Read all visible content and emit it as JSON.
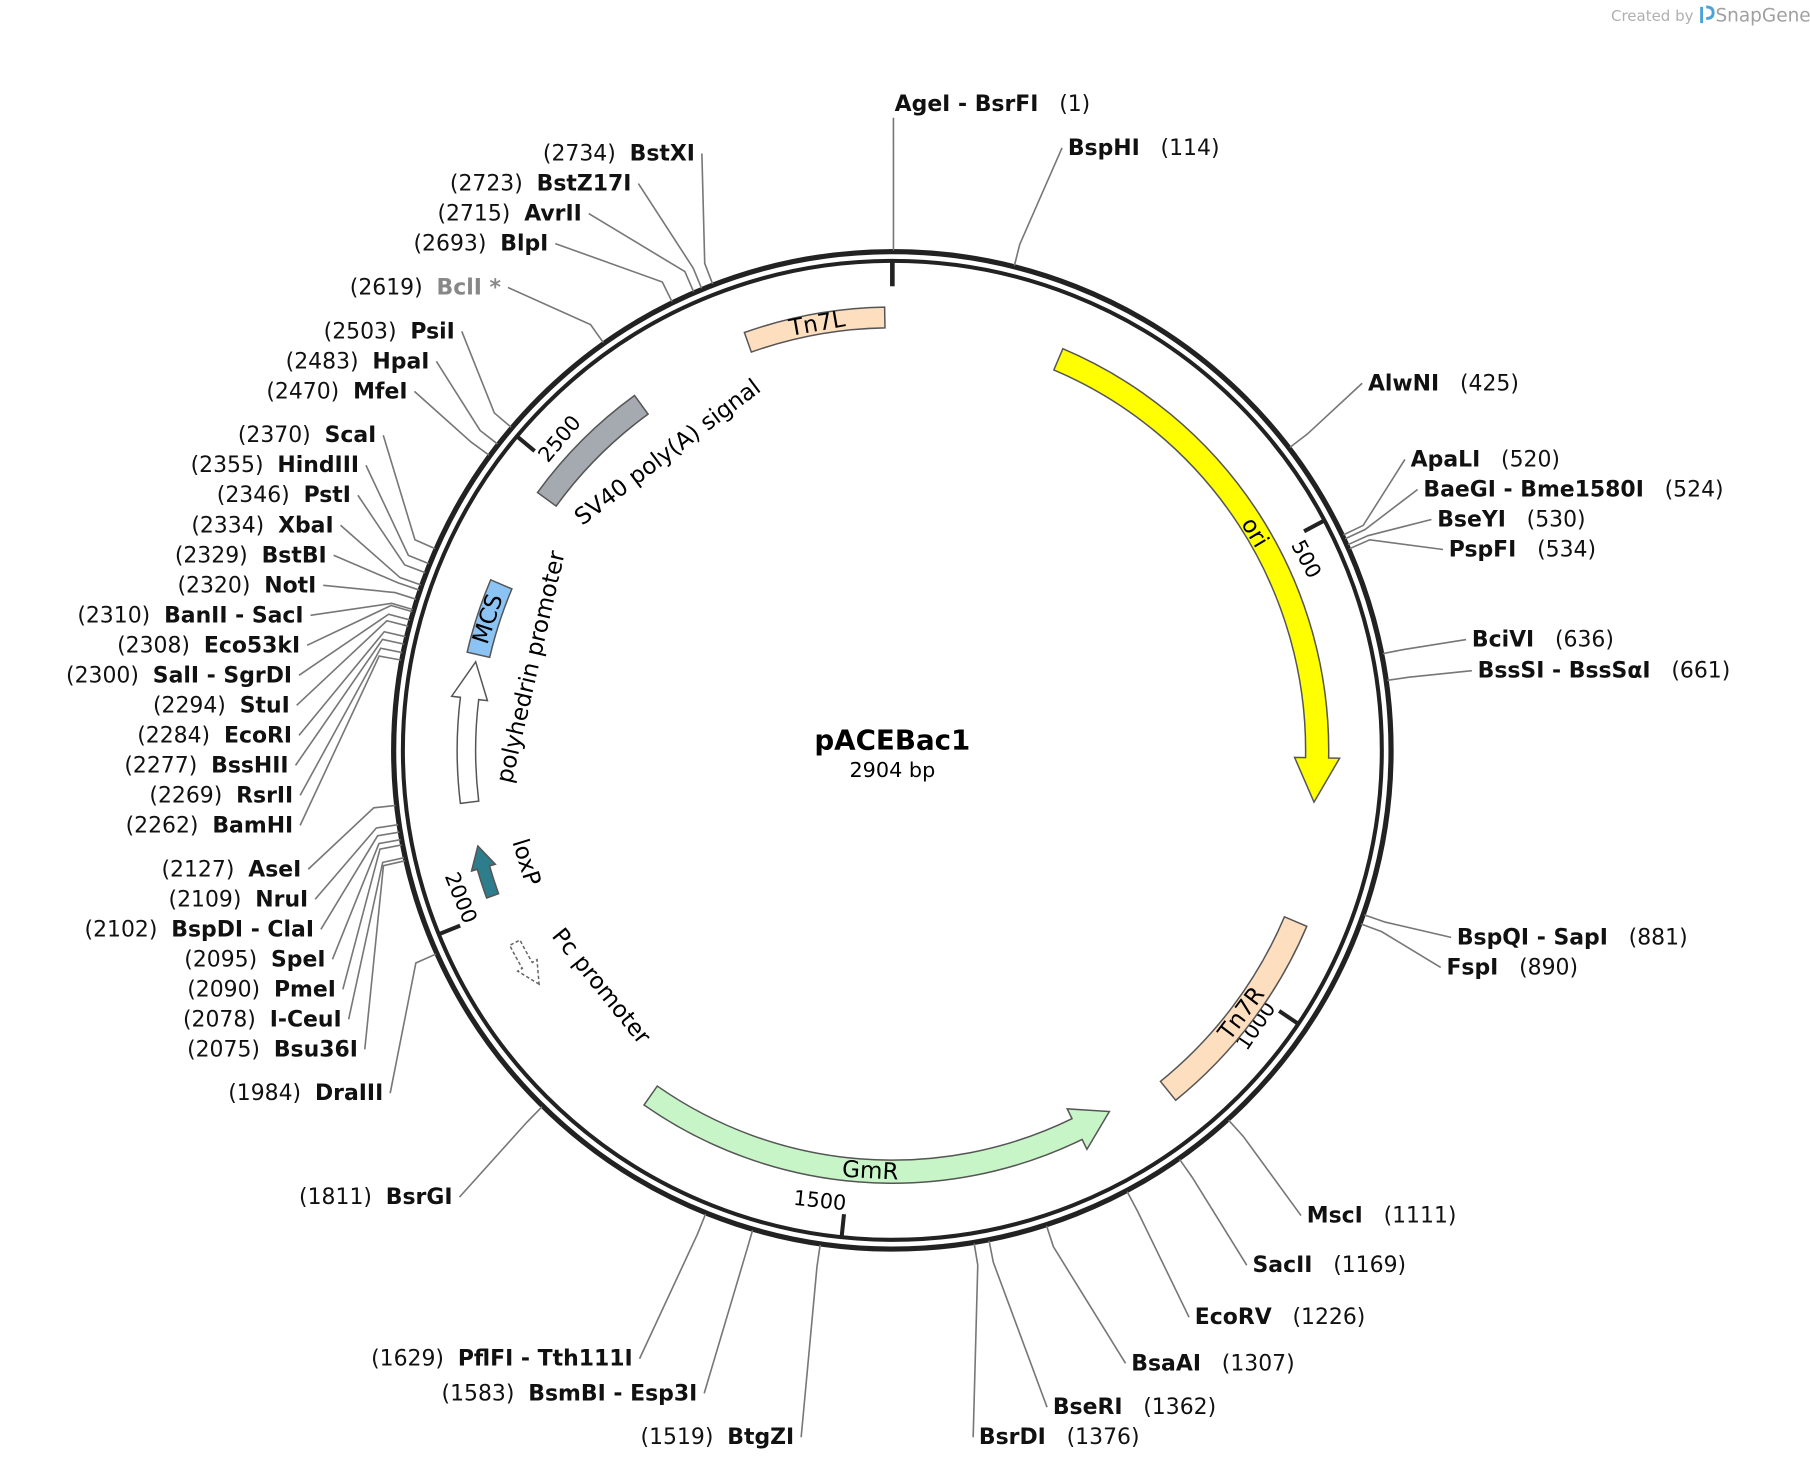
{
  "watermark": {
    "prefix": "Created by",
    "brand": "SnapGene"
  },
  "map": {
    "title": "pACEBac1",
    "length": {
      "value": 2904,
      "label": "2904 bp"
    },
    "ticks": [
      500,
      1000,
      1500,
      2000,
      2500
    ],
    "features": [
      {
        "name": "Tn7L",
        "color": "#fddfbf"
      },
      {
        "name": "ori",
        "color": "#ffff00"
      },
      {
        "name": "Tn7R",
        "color": "#fddfbf"
      },
      {
        "name": "GmR",
        "color": "#c8f5c8"
      },
      {
        "name": "Pc promoter",
        "color": "#ffffff"
      },
      {
        "name": "loxP",
        "color": "#2e7d8c"
      },
      {
        "name": "polyhedrin promoter",
        "color": "#ffffff"
      },
      {
        "name": "MCS",
        "color": "#8cc3f5"
      },
      {
        "name": "SV40 poly(A) signal",
        "color": "#a5a9b0"
      }
    ],
    "sites": [
      {
        "name": "AgeI - BsrFI",
        "pos": {
          "value": 1,
          "label": "(1)"
        }
      },
      {
        "name": "BspHI",
        "pos": {
          "value": 114,
          "label": "(114)"
        }
      },
      {
        "name": "AlwNI",
        "pos": {
          "value": 425,
          "label": "(425)"
        }
      },
      {
        "name": "ApaLI",
        "pos": {
          "value": 520,
          "label": "(520)"
        }
      },
      {
        "name": "BaeGI - Bme1580I",
        "pos": {
          "value": 524,
          "label": "(524)"
        }
      },
      {
        "name": "BseYI",
        "pos": {
          "value": 530,
          "label": "(530)"
        }
      },
      {
        "name": "PspFI",
        "pos": {
          "value": 534,
          "label": "(534)"
        }
      },
      {
        "name": "BciVI",
        "pos": {
          "value": 636,
          "label": "(636)"
        }
      },
      {
        "name": "BssSI - BssSαI",
        "pos": {
          "value": 661,
          "label": "(661)"
        }
      },
      {
        "name": "BspQI - SapI",
        "pos": {
          "value": 881,
          "label": "(881)"
        }
      },
      {
        "name": "FspI",
        "pos": {
          "value": 890,
          "label": "(890)"
        }
      },
      {
        "name": "MscI",
        "pos": {
          "value": 1111,
          "label": "(1111)"
        }
      },
      {
        "name": "SacII",
        "pos": {
          "value": 1169,
          "label": "(1169)"
        }
      },
      {
        "name": "EcoRV",
        "pos": {
          "value": 1226,
          "label": "(1226)"
        }
      },
      {
        "name": "BsaAI",
        "pos": {
          "value": 1307,
          "label": "(1307)"
        }
      },
      {
        "name": "BseRI",
        "pos": {
          "value": 1362,
          "label": "(1362)"
        }
      },
      {
        "name": "BsrDI",
        "pos": {
          "value": 1376,
          "label": "(1376)"
        }
      },
      {
        "name": "BtgZI",
        "pos": {
          "value": 1519,
          "label": "(1519)"
        }
      },
      {
        "name": "BsmBI - Esp3I",
        "pos": {
          "value": 1583,
          "label": "(1583)"
        }
      },
      {
        "name": "PflFI - Tth111I",
        "pos": {
          "value": 1629,
          "label": "(1629)"
        }
      },
      {
        "name": "BsrGI",
        "pos": {
          "value": 1811,
          "label": "(1811)"
        }
      },
      {
        "name": "DraIII",
        "pos": {
          "value": 1984,
          "label": "(1984)"
        }
      },
      {
        "name": "Bsu36I",
        "pos": {
          "value": 2075,
          "label": "(2075)"
        }
      },
      {
        "name": "I-CeuI",
        "pos": {
          "value": 2078,
          "label": "(2078)"
        }
      },
      {
        "name": "PmeI",
        "pos": {
          "value": 2090,
          "label": "(2090)"
        }
      },
      {
        "name": "SpeI",
        "pos": {
          "value": 2095,
          "label": "(2095)"
        }
      },
      {
        "name": "BspDI - ClaI",
        "pos": {
          "value": 2102,
          "label": "(2102)"
        }
      },
      {
        "name": "NruI",
        "pos": {
          "value": 2109,
          "label": "(2109)"
        }
      },
      {
        "name": "AseI",
        "pos": {
          "value": 2127,
          "label": "(2127)"
        }
      },
      {
        "name": "BamHI",
        "pos": {
          "value": 2262,
          "label": "(2262)"
        }
      },
      {
        "name": "RsrII",
        "pos": {
          "value": 2269,
          "label": "(2269)"
        }
      },
      {
        "name": "BssHII",
        "pos": {
          "value": 2277,
          "label": "(2277)"
        }
      },
      {
        "name": "EcoRI",
        "pos": {
          "value": 2284,
          "label": "(2284)"
        }
      },
      {
        "name": "StuI",
        "pos": {
          "value": 2294,
          "label": "(2294)"
        }
      },
      {
        "name": "SalI - SgrDI",
        "pos": {
          "value": 2300,
          "label": "(2300)"
        }
      },
      {
        "name": "Eco53kI",
        "pos": {
          "value": 2308,
          "label": "(2308)"
        }
      },
      {
        "name": "BanII - SacI",
        "pos": {
          "value": 2310,
          "label": "(2310)"
        }
      },
      {
        "name": "NotI",
        "pos": {
          "value": 2320,
          "label": "(2320)"
        }
      },
      {
        "name": "BstBI",
        "pos": {
          "value": 2329,
          "label": "(2329)"
        }
      },
      {
        "name": "XbaI",
        "pos": {
          "value": 2334,
          "label": "(2334)"
        }
      },
      {
        "name": "PstI",
        "pos": {
          "value": 2346,
          "label": "(2346)"
        }
      },
      {
        "name": "HindIII",
        "pos": {
          "value": 2355,
          "label": "(2355)"
        }
      },
      {
        "name": "ScaI",
        "pos": {
          "value": 2370,
          "label": "(2370)"
        }
      },
      {
        "name": "MfeI",
        "pos": {
          "value": 2470,
          "label": "(2470)"
        }
      },
      {
        "name": "HpaI",
        "pos": {
          "value": 2483,
          "label": "(2483)"
        }
      },
      {
        "name": "PsiI",
        "pos": {
          "value": 2503,
          "label": "(2503)"
        }
      },
      {
        "name": "BclI *",
        "pos": {
          "value": 2619,
          "label": "(2619)"
        },
        "color": "#888888"
      },
      {
        "name": "BlpI",
        "pos": {
          "value": 2693,
          "label": "(2693)"
        }
      },
      {
        "name": "AvrII",
        "pos": {
          "value": 2715,
          "label": "(2715)"
        }
      },
      {
        "name": "BstZ17I",
        "pos": {
          "value": 2723,
          "label": "(2723)"
        }
      },
      {
        "name": "BstXI",
        "pos": {
          "value": 2734,
          "label": "(2734)"
        }
      }
    ]
  }
}
